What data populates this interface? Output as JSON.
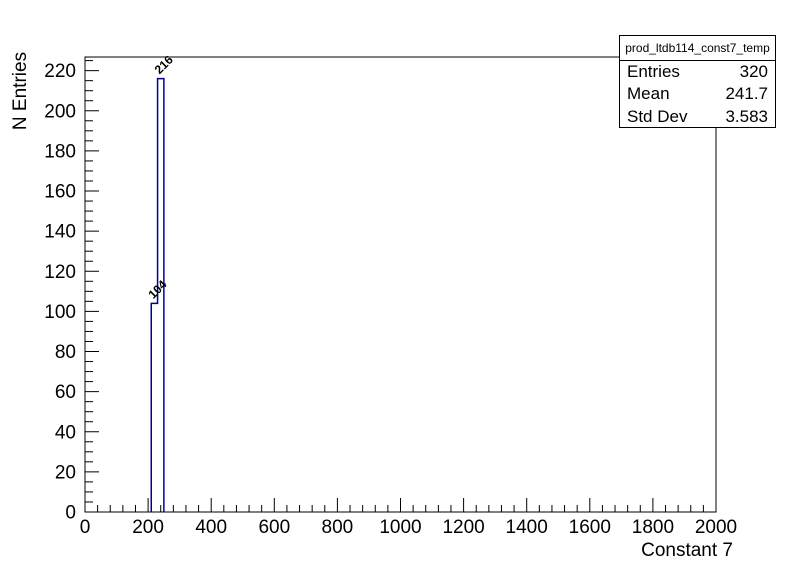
{
  "window": {
    "background": "#ffffff",
    "foreground": "#000000"
  },
  "chart_data": {
    "type": "bar",
    "subtype": "root-histogram",
    "title": "",
    "xlabel": "Constant 7",
    "ylabel": "N Entries",
    "xlim": [
      0,
      2000
    ],
    "ylim": [
      0,
      226.8
    ],
    "grid": false,
    "legend_position": "none",
    "bar_color": "#000099",
    "axis_color": "#000000",
    "x_ticks": {
      "major_start": 0,
      "major_step": 200,
      "minor_step": 40,
      "labels": [
        "0",
        "200",
        "400",
        "600",
        "800",
        "1000",
        "1200",
        "1400",
        "1600",
        "1800",
        "2000"
      ]
    },
    "y_ticks": {
      "major_start": 0,
      "major_step": 20,
      "minor_step": 5,
      "labels": [
        "0",
        "20",
        "40",
        "60",
        "80",
        "100",
        "120",
        "140",
        "160",
        "180",
        "200",
        "220"
      ]
    },
    "bins": [
      {
        "x_low": 210,
        "x_high": 230,
        "count": 104,
        "label": "104"
      },
      {
        "x_low": 230,
        "x_high": 250,
        "count": 216,
        "label": "216"
      }
    ],
    "stats": {
      "title": "prod_ltdb114_const7_temp",
      "rows": [
        {
          "label": "Entries",
          "value": "320"
        },
        {
          "label": "Mean",
          "value": "241.7"
        },
        {
          "label": "Std Dev",
          "value": "3.583"
        }
      ]
    }
  }
}
